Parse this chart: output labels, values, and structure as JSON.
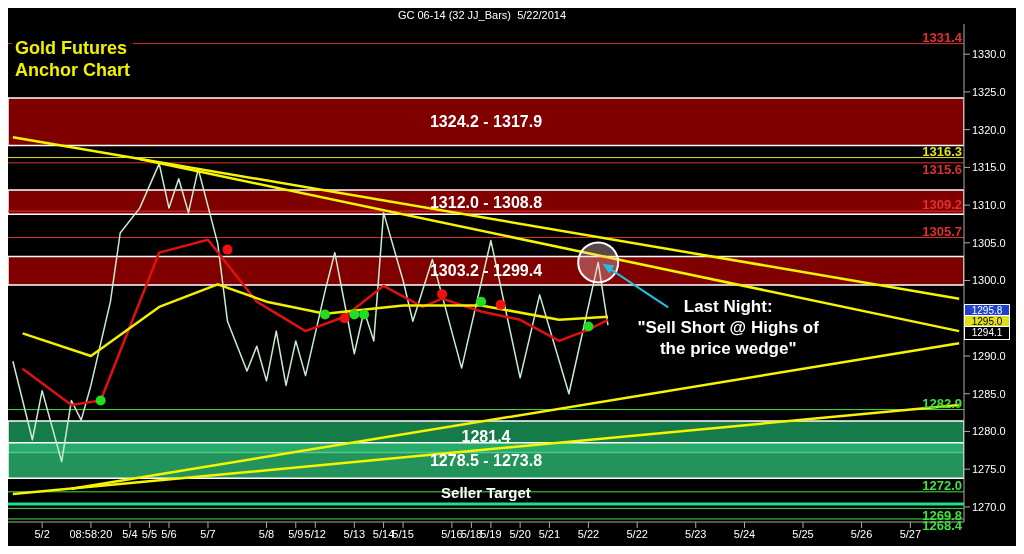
{
  "chart_data": {
    "type": "line",
    "title": "Gold Futures Anchor Chart",
    "subtitle": "GC 06-14 (32 JJ_Bars)  5/22/2014",
    "categories": [
      null,
      null,
      null,
      "5/2",
      null,
      null,
      null,
      null,
      "08:58:20",
      null,
      null,
      null,
      "5/4",
      null,
      "5/5",
      null,
      "5/6",
      null,
      null,
      null,
      "5/7",
      null,
      null,
      null,
      null,
      null,
      "5/8",
      null,
      null,
      "5/9",
      null,
      "5/12",
      null,
      null,
      null,
      "5/13",
      null,
      null,
      "5/14",
      null,
      "5/15",
      null,
      null,
      null,
      null,
      "5/16",
      null,
      "5/18",
      null,
      "5/19",
      null,
      null,
      "5/20",
      null,
      null,
      "5/21",
      null,
      null,
      null,
      "5/22",
      null,
      null,
      null,
      null,
      "5/22",
      null,
      null,
      null,
      null,
      null,
      "5/23",
      null,
      null,
      null,
      null,
      "5/24",
      null,
      null,
      null,
      null,
      null,
      "5/25",
      null,
      null,
      null,
      null,
      null,
      "5/26",
      null,
      null,
      null,
      null,
      "5/27",
      null,
      null,
      null,
      null,
      null
    ],
    "ylim": [
      1268,
      1334
    ],
    "yticks": [
      {
        "value": 1270,
        "label": "1270.0"
      },
      {
        "value": 1275,
        "label": "1275.0"
      },
      {
        "value": 1280,
        "label": "1280.0"
      },
      {
        "value": 1285,
        "label": "1285.0"
      },
      {
        "value": 1290,
        "label": "1290.0"
      },
      {
        "value": 1295,
        "label": null
      },
      {
        "value": 1300,
        "label": "1300.0"
      },
      {
        "value": 1305,
        "label": "1305.0"
      },
      {
        "value": 1310,
        "label": "1310.0"
      },
      {
        "value": 1315,
        "label": "1315.0"
      },
      {
        "value": 1320,
        "label": "1320.0"
      },
      {
        "value": 1325,
        "label": "1325.0"
      },
      {
        "value": 1330,
        "label": "1330.0"
      }
    ],
    "bands": [
      {
        "axis": "y",
        "from": 1317.9,
        "to": 1324.2,
        "label": "1324.2 - 1317.9",
        "color": "#a00000"
      },
      {
        "axis": "y",
        "from": 1308.8,
        "to": 1312.0,
        "label": "1312.0 - 1308.8",
        "color": "#a00000"
      },
      {
        "axis": "y",
        "from": 1299.4,
        "to": 1303.2,
        "label": "1303.2 - 1299.4",
        "color": "#a00000"
      },
      {
        "axis": "y",
        "from": 1277.2,
        "to": 1281.4,
        "label": "1281.4",
        "color": "#1a9a5a"
      },
      {
        "axis": "y",
        "from": 1273.8,
        "to": 1278.5,
        "label": "1278.5 - 1273.8",
        "color": "#2ab870"
      }
    ],
    "ref_lines": [
      {
        "axis": "y",
        "value": 1331.4,
        "label": "1331.4",
        "color": "#e03030"
      },
      {
        "axis": "y",
        "value": 1316.3,
        "label": "1316.3",
        "color": "#e0e020"
      },
      {
        "axis": "y",
        "value": 1315.6,
        "label": "1315.6",
        "color": "#e03030"
      },
      {
        "axis": "y",
        "value": 1309.2,
        "label": "1309.2",
        "color": "#e03030"
      },
      {
        "axis": "y",
        "value": 1305.7,
        "label": "1305.7",
        "color": "#e03030"
      },
      {
        "axis": "y",
        "value": 1282.9,
        "label": "1282.9",
        "color": "#40e040"
      },
      {
        "axis": "y",
        "value": 1272.0,
        "label": "1272.0",
        "color": "#40e040"
      },
      {
        "axis": "y",
        "value": 1270.4,
        "label": "Seller Target",
        "color": "#20e090"
      },
      {
        "axis": "y",
        "value": 1269.8,
        "label": "1269.8",
        "color": "#40e040"
      },
      {
        "axis": "y",
        "value": 1268.4,
        "label": "1268.4",
        "color": "#40e040"
      }
    ],
    "annotations": [
      {
        "text": "Last Night:\n\"Sell Short @ Highs of\nthe price wedge\"",
        "y": 1302.4
      },
      "1295.8",
      "1295.0",
      "1294.1"
    ],
    "series": [
      {
        "color": "#c8ecd0",
        "values": [
          1289.3,
          null,
          1278.9,
          1285.4,
          null,
          1276.0,
          1284.1,
          1281.5,
          1286.1,
          null,
          1297.2,
          1306.3,
          null,
          1309.6,
          null,
          1315.5,
          1309.6,
          1313.5,
          1309.0,
          1314.8,
          null,
          1304.9,
          1294.6,
          null,
          1288.0,
          1291.3,
          1286.7,
          1293.3,
          1286.1,
          1292.0,
          1287.4,
          null,
          1298.6,
          1303.7,
          null,
          1290.3,
          1296.0,
          1292.0,
          1309.0,
          null,
          1300.0,
          1294.6,
          null,
          1302.8,
          null,
          null,
          1288.4,
          null,
          null,
          1305.3,
          null,
          null,
          1287.1,
          null,
          1298.1,
          null,
          null,
          1285.0,
          null,
          null,
          1302.4,
          1294.1,
          null,
          null,
          null,
          null,
          null,
          null,
          null,
          null,
          null,
          null,
          null,
          null,
          null,
          null,
          null,
          null,
          null,
          null,
          null,
          null,
          null,
          null,
          null,
          null,
          null,
          null,
          null,
          null,
          null,
          null,
          null,
          null,
          null,
          null,
          null,
          null
        ]
      },
      {
        "color": "#e01010",
        "values": [
          null,
          1288.3,
          null,
          null,
          null,
          null,
          1283.5,
          null,
          null,
          1284.1,
          null,
          null,
          null,
          null,
          null,
          1303.7,
          null,
          null,
          null,
          null,
          1305.4,
          null,
          null,
          null,
          null,
          1297.2,
          null,
          null,
          null,
          null,
          1293.3,
          null,
          null,
          null,
          1295.2,
          null,
          null,
          null,
          1299.3,
          null,
          null,
          null,
          1296.5,
          null,
          1297.6,
          null,
          null,
          null,
          1295.9,
          null,
          null,
          null,
          1294.8,
          null,
          null,
          null,
          1292.0,
          null,
          null,
          1293.5,
          null,
          1294.8,
          null,
          null,
          null,
          null,
          null,
          null,
          null,
          null,
          null,
          null,
          null,
          null,
          null,
          null,
          null,
          null,
          null,
          null,
          null,
          null,
          null,
          null,
          null,
          null,
          null,
          null,
          null,
          null,
          null,
          null,
          null,
          null,
          null,
          null,
          null,
          null
        ]
      },
      {
        "color": "#f0f000",
        "values": [
          null,
          1293.0,
          null,
          null,
          null,
          null,
          null,
          null,
          1290.0,
          null,
          null,
          null,
          null,
          null,
          null,
          1296.5,
          null,
          null,
          null,
          null,
          null,
          1299.5,
          null,
          null,
          null,
          null,
          1297.2,
          null,
          null,
          null,
          null,
          null,
          1295.6,
          null,
          null,
          null,
          null,
          null,
          null,
          null,
          1296.7,
          null,
          null,
          null,
          null,
          null,
          null,
          null,
          1296.7,
          null,
          null,
          null,
          null,
          null,
          null,
          null,
          1294.8,
          null,
          null,
          null,
          null,
          1295.2,
          null,
          null,
          null,
          null,
          null,
          null,
          null,
          null,
          null,
          null,
          null,
          null,
          null,
          null,
          null,
          null,
          null,
          null,
          null,
          null,
          null,
          null,
          null,
          null,
          null,
          null,
          null,
          null,
          null,
          null,
          null,
          null,
          null,
          null,
          null,
          null
        ]
      },
      {
        "color": "#f5f500",
        "values": [
          1319.0,
          null,
          null,
          null,
          null,
          null,
          null,
          null,
          null,
          null,
          null,
          null,
          null,
          null,
          null,
          null,
          null,
          null,
          null,
          null,
          null,
          null,
          null,
          null,
          null,
          null,
          null,
          null,
          null,
          null,
          null,
          null,
          null,
          null,
          null,
          null,
          null,
          null,
          null,
          null,
          null,
          null,
          null,
          null,
          null,
          null,
          null,
          null,
          null,
          null,
          null,
          null,
          null,
          null,
          null,
          null,
          null,
          null,
          null,
          null,
          null,
          null,
          null,
          null,
          null,
          null,
          null,
          null,
          null,
          null,
          null,
          null,
          null,
          null,
          null,
          null,
          null,
          null,
          null,
          null,
          null,
          null,
          null,
          null,
          null,
          null,
          null,
          null,
          null,
          null,
          null,
          null,
          null,
          null,
          null,
          null,
          null,
          1297.6
        ]
      },
      {
        "color": "#f5f500",
        "values": [
          null,
          null,
          null,
          null,
          null,
          null,
          null,
          null,
          null,
          null,
          null,
          null,
          null,
          1316.1,
          null,
          null,
          null,
          null,
          null,
          null,
          null,
          null,
          null,
          null,
          null,
          null,
          null,
          null,
          null,
          null,
          null,
          null,
          null,
          null,
          null,
          null,
          null,
          null,
          null,
          null,
          null,
          null,
          null,
          null,
          null,
          null,
          null,
          null,
          null,
          null,
          null,
          null,
          null,
          null,
          null,
          null,
          null,
          null,
          null,
          null,
          null,
          null,
          null,
          null,
          null,
          null,
          null,
          null,
          null,
          null,
          null,
          null,
          null,
          null,
          null,
          null,
          null,
          null,
          null,
          null,
          null,
          null,
          null,
          null,
          null,
          null,
          null,
          null,
          null,
          null,
          null,
          null,
          null,
          null,
          null,
          null,
          null,
          1293.3
        ]
      },
      {
        "color": "#f5f500",
        "values": [
          null,
          null,
          null,
          null,
          null,
          null,
          1272.4,
          null,
          null,
          null,
          null,
          null,
          null,
          null,
          null,
          null,
          null,
          null,
          null,
          null,
          null,
          null,
          null,
          null,
          null,
          null,
          null,
          null,
          null,
          null,
          null,
          null,
          null,
          null,
          null,
          null,
          null,
          null,
          null,
          null,
          null,
          null,
          null,
          null,
          null,
          null,
          null,
          null,
          null,
          null,
          null,
          null,
          null,
          null,
          null,
          null,
          null,
          null,
          null,
          null,
          null,
          null,
          null,
          null,
          null,
          null,
          null,
          null,
          null,
          null,
          null,
          null,
          null,
          null,
          null,
          null,
          null,
          null,
          null,
          null,
          null,
          null,
          null,
          null,
          null,
          null,
          null,
          null,
          null,
          null,
          null,
          null,
          null,
          null,
          null,
          null,
          null,
          1291.7
        ]
      },
      {
        "color": "#f5f500",
        "values": [
          1271.7,
          null,
          null,
          null,
          null,
          null,
          null,
          null,
          null,
          null,
          null,
          null,
          null,
          null,
          null,
          null,
          null,
          null,
          null,
          null,
          null,
          null,
          null,
          null,
          null,
          null,
          null,
          null,
          null,
          null,
          null,
          null,
          null,
          null,
          null,
          null,
          null,
          null,
          null,
          null,
          null,
          null,
          null,
          null,
          null,
          null,
          null,
          null,
          null,
          null,
          null,
          null,
          null,
          null,
          null,
          null,
          null,
          null,
          null,
          null,
          null,
          null,
          null,
          null,
          null,
          null,
          null,
          null,
          null,
          null,
          null,
          null,
          null,
          null,
          null,
          null,
          null,
          null,
          null,
          null,
          null,
          null,
          null,
          null,
          null,
          null,
          null,
          null,
          null,
          null,
          null,
          null,
          null,
          null,
          null,
          null,
          null,
          1283.5
        ]
      },
      {
        "type": "scatter",
        "color": "#22dd22",
        "values": [
          null,
          null,
          null,
          null,
          null,
          null,
          null,
          null,
          null,
          1284.1,
          null,
          null,
          null,
          null,
          null,
          null,
          null,
          null,
          null,
          null,
          null,
          null,
          null,
          null,
          null,
          null,
          null,
          null,
          null,
          null,
          null,
          null,
          1295.5,
          null,
          null,
          1295.5,
          1295.5,
          null,
          null,
          null,
          null,
          null,
          null,
          null,
          null,
          null,
          null,
          null,
          1297.2,
          null,
          null,
          null,
          null,
          null,
          null,
          null,
          null,
          null,
          null,
          1293.9,
          null,
          null,
          null,
          null,
          null,
          null,
          null,
          null,
          null,
          null,
          null,
          null,
          null,
          null,
          null,
          null,
          null,
          null,
          null,
          null,
          null,
          null,
          null,
          null,
          null,
          null,
          null,
          null,
          null,
          null,
          null,
          null,
          null,
          null,
          null,
          null,
          null,
          null
        ]
      },
      {
        "type": "scatter",
        "color": "#ee1111",
        "values": [
          null,
          null,
          null,
          null,
          null,
          null,
          null,
          null,
          null,
          null,
          null,
          null,
          null,
          null,
          null,
          null,
          null,
          null,
          null,
          null,
          null,
          null,
          1304.1,
          null,
          null,
          null,
          null,
          null,
          null,
          null,
          null,
          null,
          null,
          null,
          1295.0,
          null,
          null,
          null,
          null,
          null,
          null,
          null,
          null,
          null,
          1298.2,
          null,
          null,
          null,
          null,
          null,
          1296.8,
          null,
          null,
          null,
          null,
          null,
          null,
          null,
          null,
          null,
          null,
          null,
          null,
          null,
          null,
          null,
          null,
          null,
          null,
          null,
          null,
          null,
          null,
          null,
          null,
          null,
          null,
          null,
          null,
          null,
          null,
          null,
          null,
          null,
          null,
          null,
          null,
          null,
          null,
          null,
          null,
          null,
          null,
          null,
          null,
          null,
          null,
          null
        ]
      }
    ]
  }
}
